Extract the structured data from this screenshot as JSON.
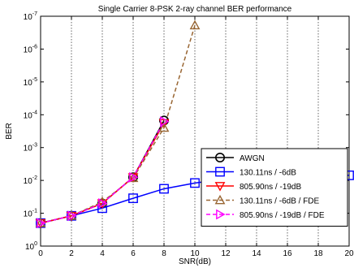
{
  "chart_data": {
    "type": "line",
    "title": "Single Carrier 8-PSK 2-ray channel BER performance",
    "xlabel": "SNR(dB)",
    "ylabel": "BER",
    "xlim": [
      0,
      20
    ],
    "ylim_exponent": [
      -7,
      0
    ],
    "yscale": "log",
    "grid": true,
    "legend_placement": "bottom-right",
    "x_ticks": [
      0,
      2,
      4,
      6,
      8,
      10,
      12,
      14,
      16,
      18,
      20
    ],
    "y_tick_exponents": [
      0,
      -1,
      -2,
      -3,
      -4,
      -5,
      -6,
      -7
    ],
    "series": [
      {
        "name": "AWGN",
        "color": "#000000",
        "marker": "circle",
        "dash": "solid",
        "x": [
          0,
          2,
          4,
          6,
          8
        ],
        "y": [
          0.2,
          0.12,
          0.05,
          0.008,
          0.00015
        ]
      },
      {
        "name": "130.11ns / -6dB",
        "color": "#0000ff",
        "marker": "square",
        "dash": "solid",
        "x": [
          0,
          2,
          4,
          6,
          8,
          10,
          12,
          14,
          16,
          18,
          20
        ],
        "y": [
          0.2,
          0.12,
          0.07,
          0.035,
          0.018,
          0.012,
          0.009,
          0.0078,
          0.0072,
          0.007,
          0.007
        ]
      },
      {
        "name": "805.90ns / -19dB",
        "color": "#ff0000",
        "marker": "triangle-down",
        "dash": "solid",
        "x": [
          0,
          2,
          4,
          6,
          8
        ],
        "y": [
          0.2,
          0.12,
          0.05,
          0.008,
          0.00018
        ]
      },
      {
        "name": "130.11ns / -6dB / FDE",
        "color": "#996633",
        "marker": "triangle-up",
        "dash": "dashed",
        "x": [
          0,
          2,
          4,
          6,
          8,
          10
        ],
        "y": [
          0.2,
          0.12,
          0.045,
          0.0085,
          0.00025,
          1.9e-07
        ]
      },
      {
        "name": "805.90ns / -19dB / FDE",
        "color": "#ff00ff",
        "marker": "triangle-right",
        "dash": "dashed",
        "x": [
          0,
          2,
          4,
          6,
          8
        ],
        "y": [
          0.2,
          0.12,
          0.05,
          0.008,
          0.00016
        ]
      }
    ]
  }
}
